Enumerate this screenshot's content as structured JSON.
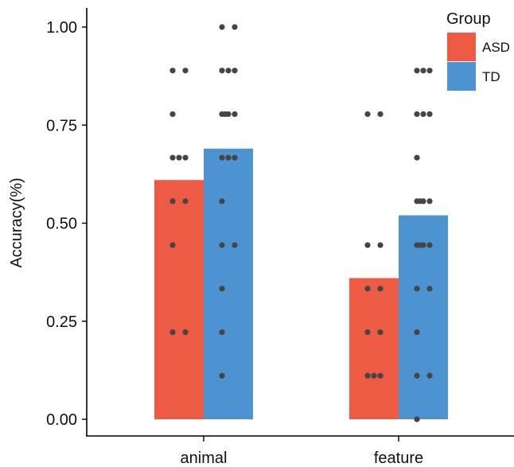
{
  "chart_data": {
    "type": "bar",
    "ylabel": "Accuracy(%)",
    "xlabel": "",
    "categories": [
      "animal",
      "feature"
    ],
    "yticks": [
      "0.00",
      "0.25",
      "0.50",
      "0.75",
      "1.00"
    ],
    "ylim": [
      0,
      1.05
    ],
    "legend": {
      "title": "Group",
      "placement": "top-right"
    },
    "grid": false,
    "series": [
      {
        "name": "ASD",
        "color": "#EE5B45",
        "values": [
          0.61,
          0.36
        ]
      },
      {
        "name": "TD",
        "color": "#4D93D2",
        "values": [
          0.69,
          0.52
        ]
      }
    ],
    "points": {
      "color": "#454545",
      "ASD": [
        [
          0.889,
          0.889,
          0.778,
          0.667,
          0.667,
          0.667,
          0.556,
          0.556,
          0.444,
          0.222,
          0.222
        ],
        [
          0.778,
          0.778,
          0.444,
          0.444,
          0.333,
          0.333,
          0.222,
          0.222,
          0.111,
          0.111,
          0.111
        ]
      ],
      "TD": [
        [
          1.0,
          1.0,
          0.889,
          0.889,
          0.889,
          0.778,
          0.778,
          0.778,
          0.778,
          0.667,
          0.667,
          0.667,
          0.556,
          0.444,
          0.444,
          0.333,
          0.222,
          0.111
        ],
        [
          0.889,
          0.889,
          0.889,
          0.778,
          0.778,
          0.778,
          0.667,
          0.556,
          0.556,
          0.556,
          0.556,
          0.444,
          0.444,
          0.444,
          0.444,
          0.333,
          0.333,
          0.222,
          0.111,
          0.111,
          0.0
        ]
      ]
    }
  }
}
